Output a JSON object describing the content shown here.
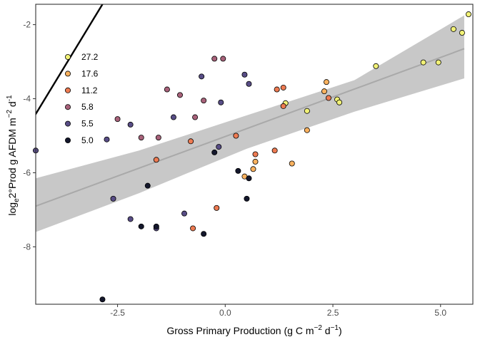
{
  "chart_data": {
    "type": "scatter",
    "xlabel": {
      "base": "Gross Primary Production (g C m",
      "exp1": "−2",
      "mid": " d",
      "exp2": "−1",
      "end": ")"
    },
    "ylabel": {
      "pre": "log",
      "sub": "e",
      "mid": "2°Prod g AFDM m",
      "exp1": "−2",
      "mid2": " d",
      "exp2": "-1"
    },
    "xlim": [
      -4.4,
      5.75
    ],
    "ylim": [
      -9.55,
      -1.45
    ],
    "xticks": [
      {
        "value": -2.5,
        "label": "-2.5"
      },
      {
        "value": 0.0,
        "label": "0.0"
      },
      {
        "value": 2.5,
        "label": "2.5"
      },
      {
        "value": 5.0,
        "label": "5.0"
      }
    ],
    "yticks": [
      {
        "value": -2,
        "label": "-2"
      },
      {
        "value": -4,
        "label": "-4"
      },
      {
        "value": -6,
        "label": "-6"
      },
      {
        "value": -8,
        "label": "-8"
      }
    ],
    "grid": false,
    "legend_position": "top-left",
    "legend": [
      {
        "label": "27.2",
        "color": "#f2f277"
      },
      {
        "label": "17.6",
        "color": "#fbb25f"
      },
      {
        "label": "11.2",
        "color": "#ee7b52"
      },
      {
        "label": "5.8",
        "color": "#a8627a"
      },
      {
        "label": "5.5",
        "color": "#584d86"
      },
      {
        "label": "5.0",
        "color": "#14172c"
      }
    ],
    "reference_line": {
      "x": [
        -4.55,
        -2.85
      ],
      "y": [
        -4.7,
        -1.45
      ],
      "color": "#000000"
    },
    "fit_line": {
      "x": [
        -4.4,
        5.55
      ],
      "y": [
        -6.9,
        -2.65
      ],
      "color": "#a9a9a9"
    },
    "confidence_band": {
      "x": [
        -4.4,
        -2.0,
        0.5,
        3.0,
        5.55
      ],
      "upper": [
        -6.15,
        -5.4,
        -4.45,
        -3.5,
        -1.75
      ],
      "lower": [
        -7.6,
        -6.55,
        -5.35,
        -4.35,
        -3.45
      ],
      "color": "#c8c8c8"
    },
    "series": [
      {
        "name": "27.2",
        "color": "#f2f277",
        "points": [
          [
            1.4,
            -4.12
          ],
          [
            1.9,
            -4.33
          ],
          [
            2.6,
            -4.02
          ],
          [
            2.65,
            -4.1
          ],
          [
            3.5,
            -3.12
          ],
          [
            4.6,
            -3.02
          ],
          [
            4.95,
            -3.02
          ],
          [
            5.3,
            -2.12
          ],
          [
            5.5,
            -2.22
          ],
          [
            5.65,
            -1.72
          ]
        ]
      },
      {
        "name": "17.6",
        "color": "#fbb25f",
        "points": [
          [
            0.45,
            -6.1
          ],
          [
            0.65,
            -5.9
          ],
          [
            0.7,
            -5.7
          ],
          [
            1.55,
            -5.75
          ],
          [
            1.9,
            -4.85
          ],
          [
            2.3,
            -3.8
          ],
          [
            2.35,
            -3.55
          ]
        ]
      },
      {
        "name": "11.2",
        "color": "#ee7b52",
        "points": [
          [
            -1.6,
            -5.65
          ],
          [
            -0.8,
            -5.15
          ],
          [
            -0.75,
            -7.5
          ],
          [
            -0.2,
            -6.95
          ],
          [
            0.25,
            -5.0
          ],
          [
            0.7,
            -5.5
          ],
          [
            1.15,
            -5.4
          ],
          [
            1.2,
            -3.75
          ],
          [
            1.35,
            -4.2
          ],
          [
            1.35,
            -3.7
          ],
          [
            2.4,
            -3.98
          ]
        ]
      },
      {
        "name": "5.8",
        "color": "#a8627a",
        "points": [
          [
            -2.5,
            -4.55
          ],
          [
            -1.95,
            -5.05
          ],
          [
            -1.55,
            -5.05
          ],
          [
            -1.35,
            -3.75
          ],
          [
            -1.05,
            -3.9
          ],
          [
            -0.7,
            -4.5
          ],
          [
            -0.5,
            -4.05
          ],
          [
            -0.25,
            -2.92
          ],
          [
            -0.05,
            -2.92
          ]
        ]
      },
      {
        "name": "5.5",
        "color": "#584d86",
        "points": [
          [
            -4.4,
            -5.4
          ],
          [
            -2.75,
            -5.1
          ],
          [
            -2.6,
            -6.7
          ],
          [
            -2.2,
            -7.25
          ],
          [
            -2.2,
            -4.7
          ],
          [
            -1.6,
            -7.5
          ],
          [
            -1.2,
            -4.5
          ],
          [
            -0.95,
            -7.1
          ],
          [
            -0.55,
            -3.4
          ],
          [
            -0.15,
            -5.3
          ],
          [
            -0.1,
            -4.1
          ],
          [
            0.45,
            -3.35
          ],
          [
            0.55,
            -3.6
          ]
        ]
      },
      {
        "name": "5.0",
        "color": "#14172c",
        "points": [
          [
            -2.85,
            -9.42
          ],
          [
            -1.95,
            -7.45
          ],
          [
            -1.8,
            -6.35
          ],
          [
            -1.6,
            -7.45
          ],
          [
            -0.5,
            -7.65
          ],
          [
            -0.25,
            -5.45
          ],
          [
            0.3,
            -5.95
          ],
          [
            0.5,
            -6.7
          ],
          [
            0.55,
            -6.15
          ]
        ]
      }
    ]
  }
}
